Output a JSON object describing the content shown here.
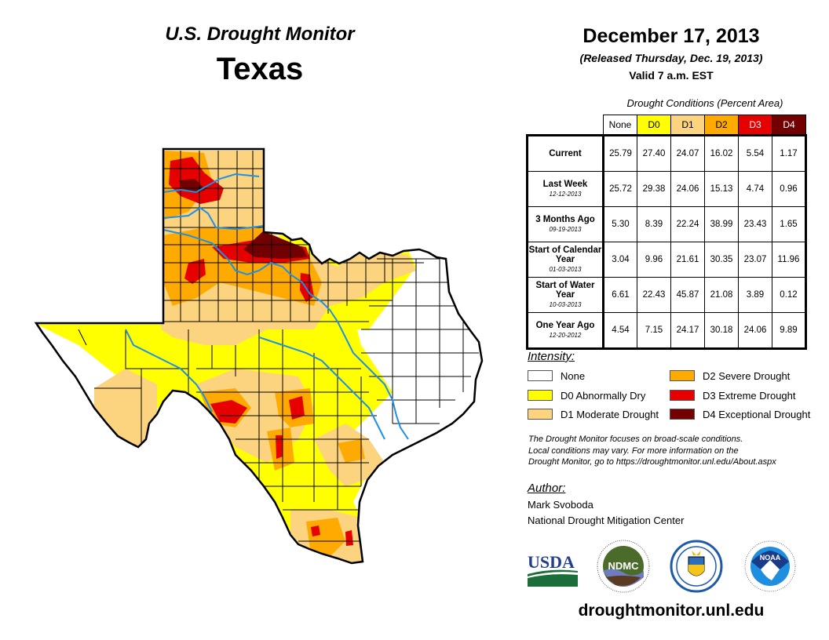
{
  "header": {
    "subtitle": "U.S. Drought Monitor",
    "region": "Texas",
    "map_date": "December 17, 2013",
    "released": "(Released Thursday, Dec. 19, 2013)",
    "valid": "Valid 7 a.m. EST"
  },
  "table": {
    "title": "Drought Conditions (Percent Area)",
    "columns": [
      {
        "label": "None",
        "color": "#ffffff",
        "text_color": "#000000"
      },
      {
        "label": "D0",
        "color": "#ffff00",
        "text_color": "#000000"
      },
      {
        "label": "D1",
        "color": "#fcd37f",
        "text_color": "#000000"
      },
      {
        "label": "D2",
        "color": "#ffaa00",
        "text_color": "#000000"
      },
      {
        "label": "D3",
        "color": "#e60000",
        "text_color": "#ffffff"
      },
      {
        "label": "D4",
        "color": "#730000",
        "text_color": "#ffffff"
      }
    ],
    "rows": [
      {
        "label": "Current",
        "date": "",
        "values": [
          "25.79",
          "27.40",
          "24.07",
          "16.02",
          "5.54",
          "1.17"
        ]
      },
      {
        "label": "Last Week",
        "date": "12-12-2013",
        "values": [
          "25.72",
          "29.38",
          "24.06",
          "15.13",
          "4.74",
          "0.96"
        ]
      },
      {
        "label": "3 Months Ago",
        "date": "09-19-2013",
        "values": [
          "5.30",
          "8.39",
          "22.24",
          "38.99",
          "23.43",
          "1.65"
        ]
      },
      {
        "label": "Start of Calendar Year",
        "date": "01-03-2013",
        "values": [
          "3.04",
          "9.96",
          "21.61",
          "30.35",
          "23.07",
          "11.96"
        ]
      },
      {
        "label": "Start of Water Year",
        "date": "10-03-2013",
        "values": [
          "6.61",
          "22.43",
          "45.87",
          "21.08",
          "3.89",
          "0.12"
        ]
      },
      {
        "label": "One Year Ago",
        "date": "12-20-2012",
        "values": [
          "4.54",
          "7.15",
          "24.17",
          "30.18",
          "24.06",
          "9.89"
        ]
      }
    ]
  },
  "legend": {
    "title": "Intensity:",
    "items": [
      {
        "label": "None",
        "color": "#ffffff"
      },
      {
        "label": "D0 Abnormally Dry",
        "color": "#ffff00"
      },
      {
        "label": "D1 Moderate Drought",
        "color": "#fcd37f"
      },
      {
        "label": "D2 Severe Drought",
        "color": "#ffaa00"
      },
      {
        "label": "D3 Extreme Drought",
        "color": "#e60000"
      },
      {
        "label": "D4 Exceptional Drought",
        "color": "#730000"
      }
    ]
  },
  "disclaimer": [
    "The Drought Monitor focuses on broad-scale conditions.",
    "Local conditions may vary. For more information on the",
    "Drought Monitor, go to https://droughtmonitor.unl.edu/About.aspx"
  ],
  "author": {
    "title": "Author:",
    "name": "Mark Svoboda",
    "organization": "National Drought Mitigation Center"
  },
  "logos": {
    "usda": "USDA",
    "ndmc": "NDMC",
    "commerce": "Department of Commerce seal",
    "noaa": "NOAA"
  },
  "footer": {
    "url": "droughtmonitor.unl.edu"
  },
  "map": {
    "river_color": "#1e90e6",
    "border_color": "#000000"
  }
}
